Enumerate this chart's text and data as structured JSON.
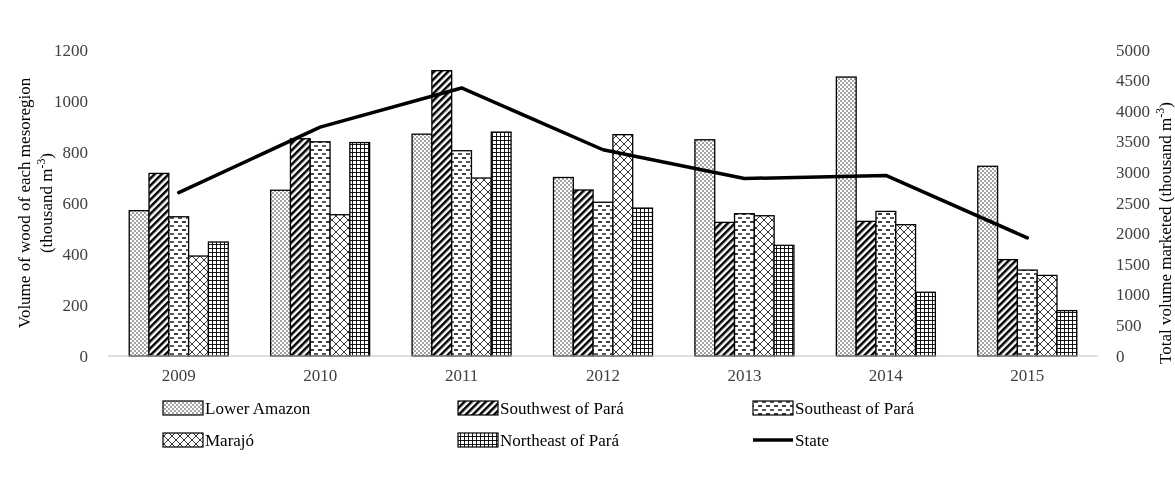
{
  "chart_data": {
    "type": "bar",
    "categories": [
      "2009",
      "2010",
      "2011",
      "2012",
      "2013",
      "2014",
      "2015"
    ],
    "ylabel": "Volume of wood of each mesoregion (thousand m$^{-3}$)",
    "y2label": "Total volume marketed (thousand m$^{-3}$)",
    "ylim": [
      0,
      1200
    ],
    "yticks": [
      0,
      200,
      400,
      600,
      800,
      1000,
      1200
    ],
    "y2lim": [
      0,
      5000
    ],
    "y2ticks": [
      0,
      500,
      1000,
      1500,
      2000,
      2500,
      3000,
      3500,
      4000,
      4500,
      5000
    ],
    "grid": false,
    "legend": "bottom",
    "series": [
      {
        "name": "Lower Amazon",
        "color": "#000000",
        "values": [
          570,
          650,
          870,
          700,
          848,
          1094,
          744
        ]
      },
      {
        "name": "Southwest of Pará",
        "color": "#000000",
        "values": [
          716,
          852,
          1119,
          651,
          524,
          528,
          378
        ]
      },
      {
        "name": "Southeast of Pará",
        "color": "#000000",
        "values": [
          546,
          840,
          805,
          603,
          558,
          567,
          337
        ]
      },
      {
        "name": "Marajó",
        "color": "#000000",
        "values": [
          392,
          554,
          698,
          868,
          550,
          515,
          316
        ]
      },
      {
        "name": "Northeast of Pará",
        "color": "#000000",
        "values": [
          447,
          837,
          878,
          580,
          434,
          250,
          178
        ]
      },
      {
        "name": "State",
        "type": "line",
        "axis": "y2",
        "color": "#000000",
        "values": [
          2670,
          3740,
          4380,
          3370,
          2900,
          2950,
          1930
        ]
      }
    ]
  }
}
